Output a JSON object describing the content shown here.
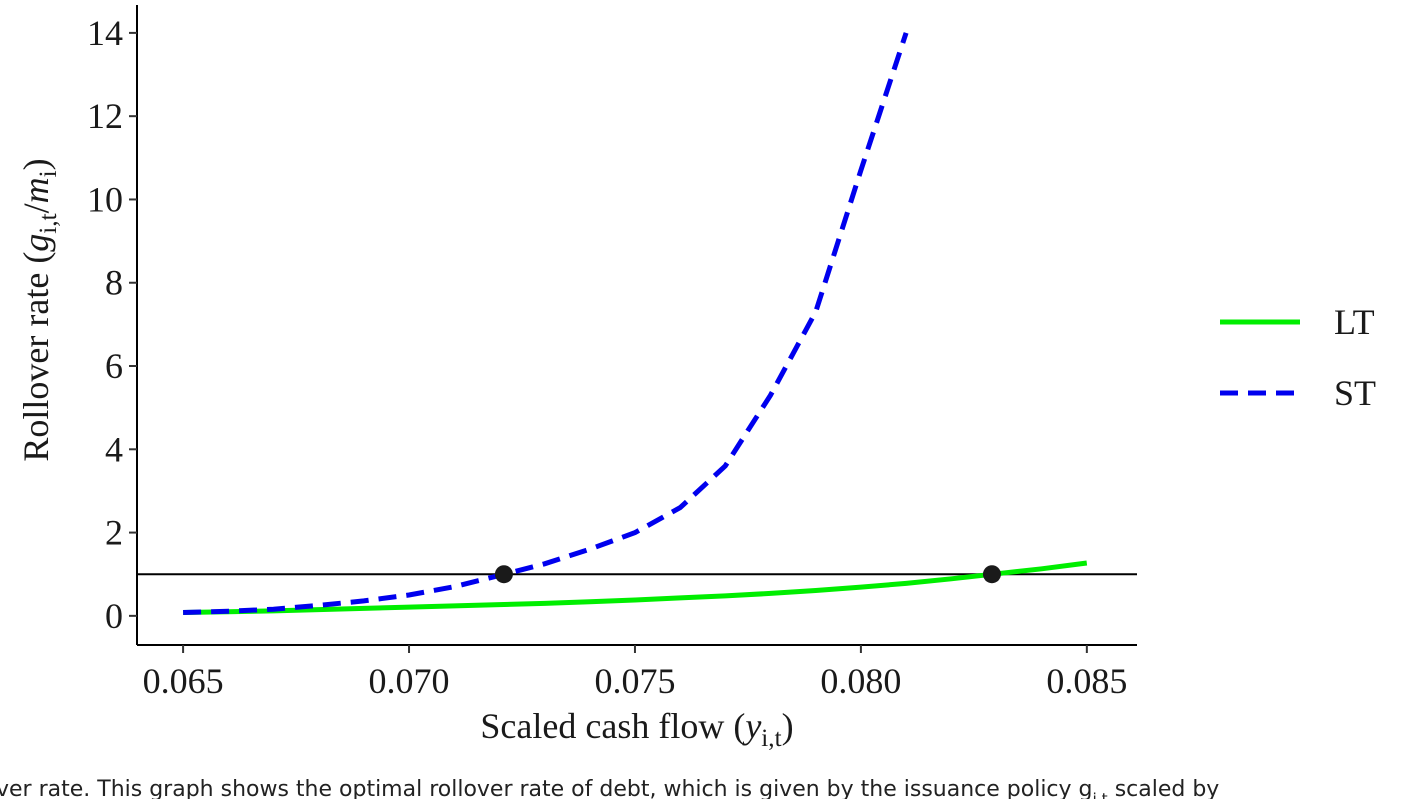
{
  "chart_data": {
    "type": "line",
    "x_label_parts": [
      "Scaled cash flow (",
      "y",
      "i,t",
      ")"
    ],
    "y_label_parts": [
      "Rollover rate (",
      "g",
      "i,t",
      "/",
      "m",
      "i",
      ")"
    ],
    "caption_parts": [
      "ver rate. This graph shows the optimal rollover rate of debt, which is given by the issuance policy g",
      "i,t",
      " scaled by"
    ],
    "xlim": [
      0.06398,
      0.08611
    ],
    "ylim": [
      -0.7,
      14.67
    ],
    "xticks": [
      0.065,
      {
        "value": 0.07,
        "label": "0.070"
      },
      0.075,
      {
        "value": 0.08,
        "label": "0.080"
      },
      0.085
    ],
    "yticks": [
      0,
      2,
      4,
      6,
      8,
      10,
      12,
      14
    ],
    "hline": 1,
    "legend": "right",
    "series": [
      {
        "name": "LT",
        "color": "#00ee00",
        "style": "solid",
        "x": [
          0.065,
          0.066,
          0.067,
          0.068,
          0.069,
          0.07,
          0.071,
          0.072,
          0.073,
          0.074,
          0.075,
          0.076,
          0.077,
          0.078,
          0.079,
          0.08,
          0.081,
          0.082,
          0.083,
          0.084,
          0.085
        ],
        "values": [
          0.08,
          0.1,
          0.12,
          0.15,
          0.18,
          0.21,
          0.24,
          0.27,
          0.3,
          0.34,
          0.38,
          0.43,
          0.48,
          0.54,
          0.61,
          0.69,
          0.78,
          0.89,
          1.01,
          1.13,
          1.27
        ]
      },
      {
        "name": "ST",
        "color": "#0000ee",
        "style": "dashed",
        "x": [
          0.065,
          0.066,
          0.067,
          0.068,
          0.069,
          0.07,
          0.071,
          0.072,
          0.073,
          0.074,
          0.075,
          0.076,
          0.077,
          0.078,
          0.079,
          0.08,
          0.081
        ],
        "values": [
          0.08,
          0.11,
          0.16,
          0.25,
          0.36,
          0.5,
          0.7,
          0.97,
          1.25,
          1.6,
          2.0,
          2.6,
          3.6,
          5.3,
          7.3,
          10.7,
          14.0
        ]
      }
    ],
    "points": {
      "color": "#1a1a1a",
      "x": [
        0.0721,
        0.0829
      ],
      "values": [
        1,
        1
      ]
    }
  }
}
